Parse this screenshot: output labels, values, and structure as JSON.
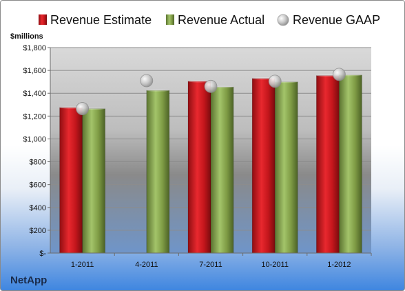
{
  "chart_data": {
    "type": "bar",
    "title": "",
    "xlabel": "",
    "ylabel": "$millions",
    "company": "NetApp",
    "categories": [
      "1-2011",
      "4-2011",
      "7-2011",
      "10-2011",
      "1-2012"
    ],
    "series": [
      {
        "name": "Revenue Estimate",
        "values": [
          1275,
          null,
          1505,
          1530,
          1555
        ],
        "color": "#e11b22",
        "type": "bar"
      },
      {
        "name": "Revenue Actual",
        "values": [
          1265,
          1425,
          1455,
          1500,
          1560
        ],
        "color": "#8fb04e",
        "type": "bar"
      },
      {
        "name": "Revenue GAAP",
        "values": [
          1265,
          1510,
          1460,
          1505,
          1565
        ],
        "color": "#bfbfbf",
        "type": "marker"
      }
    ],
    "ylim": [
      0,
      1800
    ],
    "y_ticks": [
      0,
      200,
      400,
      600,
      800,
      1000,
      1200,
      1400,
      1600,
      1800
    ],
    "y_tick_labels": [
      "$-",
      "$200",
      "$400",
      "$600",
      "$800",
      "$1,000",
      "$1,200",
      "$1,400",
      "$1,600",
      "$1,800"
    ],
    "grid": true,
    "legend": "top"
  }
}
